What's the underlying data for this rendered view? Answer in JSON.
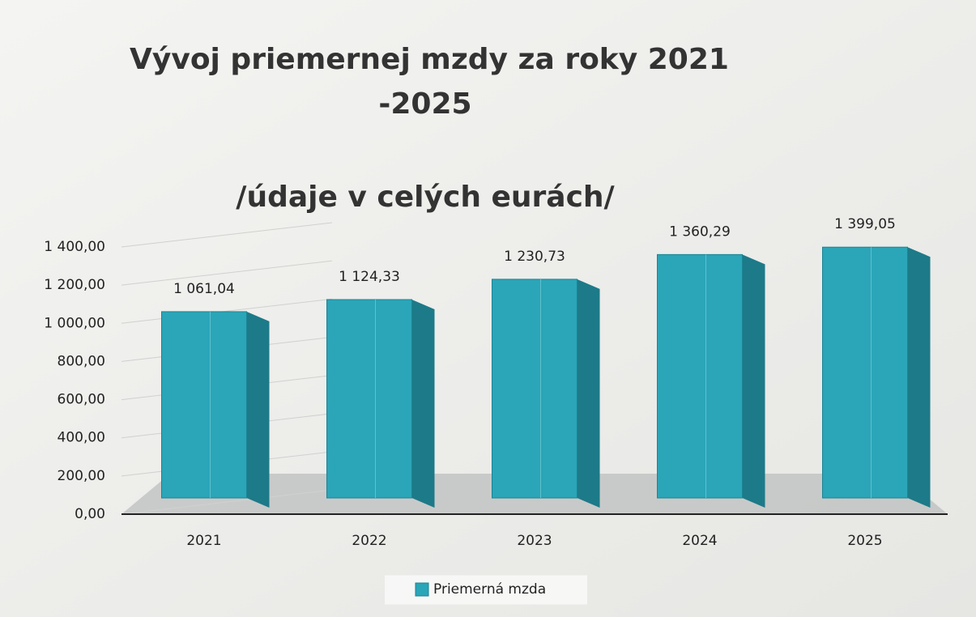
{
  "chart_data": {
    "type": "bar3d",
    "title": [
      "Vývoj priemernej mzdy za roky 2021",
      "-2025"
    ],
    "subtitle": "/údaje v celých eurách/",
    "categories": [
      "2021",
      "2022",
      "2023",
      "2024",
      "2025"
    ],
    "series": [
      {
        "name": "Priemerná mzda",
        "color": "#2ba5b8",
        "values": [
          1061.04,
          1124.33,
          1230.73,
          1360.29,
          1399.05
        ],
        "value_labels": [
          "1 061,04",
          "1 124,33",
          "1 230,73",
          "1 360,29",
          "1 399,05"
        ]
      }
    ],
    "ylim": [
      0,
      1400
    ],
    "yticks": [
      {
        "value": 0,
        "label": "0,00"
      },
      {
        "value": 200,
        "label": "200,00"
      },
      {
        "value": 400,
        "label": "400,00"
      },
      {
        "value": 600,
        "label": "600,00"
      },
      {
        "value": 800,
        "label": "800,00"
      },
      {
        "value": 1000,
        "label": "1 000,00"
      },
      {
        "value": 1200,
        "label": "1 200,00"
      },
      {
        "value": 1400,
        "label": "1 400,00"
      }
    ],
    "legend": "bottom"
  }
}
